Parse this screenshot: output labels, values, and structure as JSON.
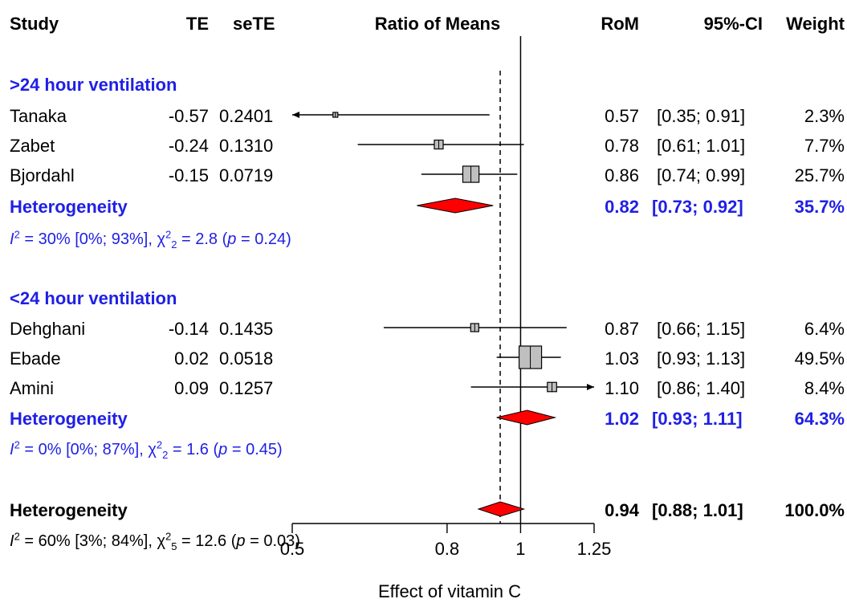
{
  "header": {
    "study": "Study",
    "te": "TE",
    "sete": "seTE",
    "plot_title": "Ratio of Means",
    "rom": "RoM",
    "ci": "95%-CI",
    "weight": "Weight"
  },
  "groups": [
    {
      "label": ">24 hour ventilation",
      "studies": [
        {
          "name": "Tanaka",
          "te": "-0.57",
          "sete": "0.2401",
          "rom": "0.57",
          "ci": "[0.35; 0.91]",
          "weight": "2.3%",
          "est": 0.57,
          "lo": 0.35,
          "hi": 0.91,
          "w": 2.3
        },
        {
          "name": "Zabet",
          "te": "-0.24",
          "sete": "0.1310",
          "rom": "0.78",
          "ci": "[0.61; 1.01]",
          "weight": "7.7%",
          "est": 0.78,
          "lo": 0.61,
          "hi": 1.01,
          "w": 7.7
        },
        {
          "name": "Bjordahl",
          "te": "-0.15",
          "sete": "0.0719",
          "rom": "0.86",
          "ci": "[0.74; 0.99]",
          "weight": "25.7%",
          "est": 0.86,
          "lo": 0.74,
          "hi": 0.99,
          "w": 25.7
        }
      ],
      "summary": {
        "label": "Heterogeneity",
        "rom": "0.82",
        "ci": "[0.73; 0.92]",
        "weight": "35.7%",
        "est": 0.82,
        "lo": 0.73,
        "hi": 0.92
      },
      "stat": {
        "i2": "30%",
        "i2_ci": "[0%; 93%]",
        "df": "2",
        "chi": "2.8",
        "p": "0.24"
      }
    },
    {
      "label": "<24 hour ventilation",
      "studies": [
        {
          "name": "Dehghani",
          "te": "-0.14",
          "sete": "0.1435",
          "rom": "0.87",
          "ci": "[0.66; 1.15]",
          "weight": "6.4%",
          "est": 0.87,
          "lo": 0.66,
          "hi": 1.15,
          "w": 6.4
        },
        {
          "name": "Ebade",
          "te": "0.02",
          "sete": "0.0518",
          "rom": "1.03",
          "ci": "[0.93; 1.13]",
          "weight": "49.5%",
          "est": 1.03,
          "lo": 0.93,
          "hi": 1.13,
          "w": 49.5
        },
        {
          "name": "Amini",
          "te": "0.09",
          "sete": "0.1257",
          "rom": "1.10",
          "ci": "[0.86; 1.40]",
          "weight": "8.4%",
          "est": 1.1,
          "lo": 0.86,
          "hi": 1.4,
          "w": 8.4
        }
      ],
      "summary": {
        "label": "Heterogeneity",
        "rom": "1.02",
        "ci": "[0.93; 1.11]",
        "weight": "64.3%",
        "est": 1.02,
        "lo": 0.93,
        "hi": 1.11
      },
      "stat": {
        "i2": "0%",
        "i2_ci": "[0%; 87%]",
        "df": "2",
        "chi": "1.6",
        "p": "0.45"
      }
    }
  ],
  "overall": {
    "label": "Heterogeneity",
    "rom": "0.94",
    "ci": "[0.88; 1.01]",
    "weight": "100.0%",
    "est": 0.94,
    "lo": 0.88,
    "hi": 1.01,
    "stat": {
      "i2": "60%",
      "i2_ci": "[3%; 84%]",
      "df": "5",
      "chi": "12.6",
      "p": "0.03"
    }
  },
  "chart_data": {
    "type": "forest",
    "xlabel": "Effect of vitamin C",
    "x_scale": "log",
    "xlim": [
      0.5,
      1.25
    ],
    "xticks": [
      0.5,
      0.8,
      1,
      1.25
    ],
    "xtick_labels": [
      "0.5",
      "0.8",
      "1",
      "1.25"
    ],
    "reference_line": 1,
    "pooled_line": 0.94,
    "colors": {
      "diamond": "#ff0000",
      "square": "#bfbfbf",
      "subgroup_text": "#1f1fe6",
      "line": "#000000"
    }
  }
}
